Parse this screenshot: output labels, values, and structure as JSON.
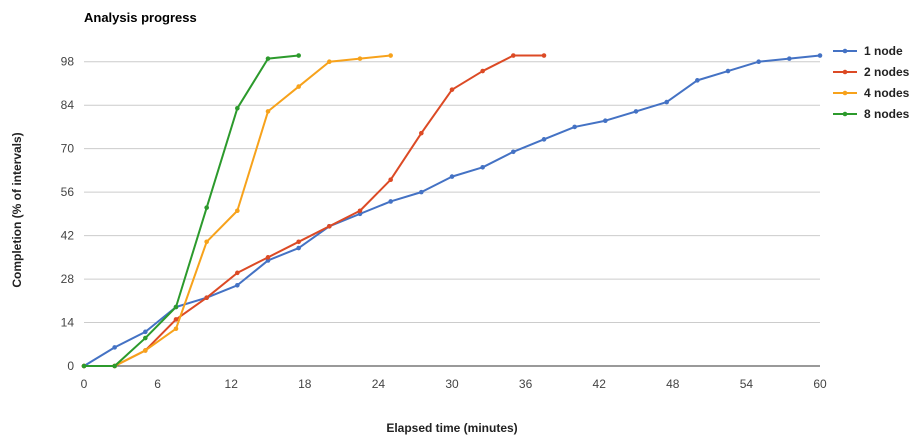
{
  "chart_data": {
    "type": "line",
    "title": "Analysis progress",
    "xlabel": "Elapsed time (minutes)",
    "ylabel": "Completion (% of intervals)",
    "xlim": [
      0,
      60
    ],
    "ylim": [
      0,
      105
    ],
    "x_ticks": [
      "0",
      "6",
      "12",
      "18",
      "24",
      "30",
      "36",
      "42",
      "48",
      "54",
      "60"
    ],
    "y_ticks": [
      "0",
      "14",
      "28",
      "42",
      "56",
      "70",
      "84",
      "98"
    ],
    "grid": "horizontal",
    "legend_position": "right",
    "series": [
      {
        "name": "1 node",
        "color": "#4472C4",
        "x": [
          0,
          2.5,
          5,
          7.5,
          10,
          12.5,
          15,
          17.5,
          20,
          22.5,
          25,
          27.5,
          30,
          32.5,
          35,
          37.5,
          40,
          42.5,
          45,
          47.5,
          50,
          52.5,
          55,
          57.5,
          60
        ],
        "y": [
          0,
          6,
          11,
          19,
          22,
          26,
          34,
          38,
          45,
          49,
          53,
          56,
          61,
          64,
          69,
          73,
          77,
          79,
          82,
          85,
          92,
          95,
          98,
          99,
          100
        ]
      },
      {
        "name": "2 nodes",
        "color": "#DC4A25",
        "x": [
          0,
          2.5,
          5,
          7.5,
          10,
          12.5,
          15,
          17.5,
          20,
          22.5,
          25,
          27.5,
          30,
          32.5,
          35,
          37.5
        ],
        "y": [
          0,
          0,
          5,
          15,
          22,
          30,
          35,
          40,
          45,
          50,
          60,
          75,
          89,
          95,
          100,
          100
        ]
      },
      {
        "name": "4 nodes",
        "color": "#F7A21B",
        "x": [
          0,
          2.5,
          5,
          7.5,
          10,
          12.5,
          15,
          17.5,
          20,
          22.5,
          25
        ],
        "y": [
          0,
          0,
          5,
          12,
          40,
          50,
          82,
          90,
          98,
          99,
          100
        ]
      },
      {
        "name": "8 nodes",
        "color": "#2C9A2C",
        "x": [
          0,
          2.5,
          5,
          7.5,
          10,
          12.5,
          15,
          17.5
        ],
        "y": [
          0,
          0,
          9,
          19,
          51,
          83,
          99,
          100
        ]
      }
    ]
  }
}
